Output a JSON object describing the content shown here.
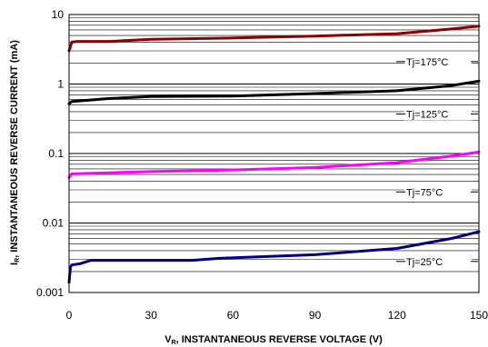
{
  "chart_data": {
    "type": "line",
    "xlabel": {
      "sub_prefix": "V",
      "sub": "R",
      "text": ", INSTANTANEOUS REVERSE VOLTAGE (V)"
    },
    "ylabel": {
      "sub_prefix": "I",
      "sub": "R",
      "text": ", INSTANTANEOUS REVERSE CURRENT (mA)"
    },
    "xlim": [
      0,
      150
    ],
    "ylim": [
      0.001,
      10
    ],
    "yscale": "log",
    "grid": true,
    "x_ticks": [
      "0",
      "30",
      "60",
      "90",
      "120",
      "150"
    ],
    "y_ticks": [
      "0.001",
      "0.01",
      "0.1",
      "1",
      "10"
    ],
    "series": [
      {
        "name": "Tj=175°C",
        "color": "#8b0000",
        "x": [
          0,
          1,
          3,
          15,
          30,
          60,
          90,
          120,
          140,
          150
        ],
        "y": [
          3.0,
          4.0,
          4.1,
          4.1,
          4.4,
          4.6,
          4.9,
          5.3,
          6.2,
          6.8
        ]
      },
      {
        "name": "Tj=125°C",
        "color": "#000000",
        "x": [
          0,
          1,
          15,
          30,
          60,
          90,
          120,
          140,
          150
        ],
        "y": [
          0.52,
          0.56,
          0.62,
          0.66,
          0.67,
          0.73,
          0.8,
          0.95,
          1.1
        ]
      },
      {
        "name": "Tj=75°C",
        "color": "#ff00ff",
        "x": [
          0,
          1,
          30,
          60,
          90,
          120,
          140,
          150
        ],
        "y": [
          0.045,
          0.051,
          0.055,
          0.058,
          0.063,
          0.074,
          0.092,
          0.105
        ]
      },
      {
        "name": "Tj=25°C",
        "color": "#000080",
        "x": [
          0,
          0.5,
          1,
          4,
          8,
          30,
          45,
          55,
          90,
          120,
          140,
          150
        ],
        "y": [
          0.0014,
          0.0023,
          0.0025,
          0.0026,
          0.0029,
          0.0029,
          0.0029,
          0.0031,
          0.0035,
          0.0043,
          0.006,
          0.0075
        ]
      }
    ]
  }
}
